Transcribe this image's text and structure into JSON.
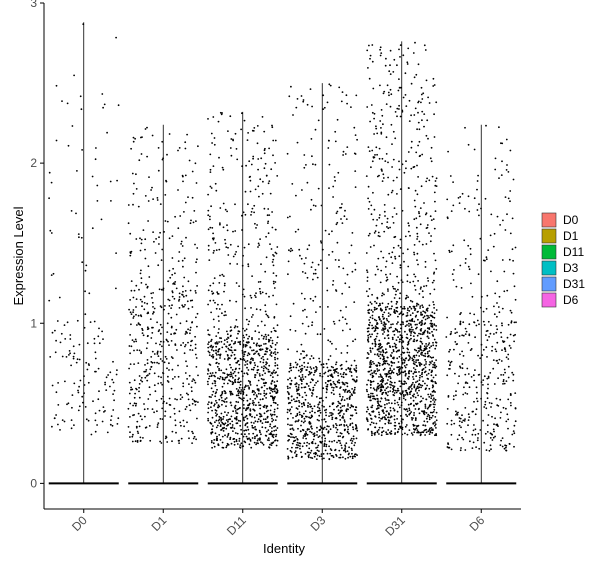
{
  "chart_data": {
    "type": "violin",
    "title": "",
    "xlabel": "Identity",
    "ylabel": "Expression Level",
    "categories": [
      "D0",
      "D1",
      "D11",
      "D3",
      "D31",
      "D6"
    ],
    "ylim": [
      -0.16,
      3.0
    ],
    "yticks": [
      0,
      1,
      2,
      3
    ],
    "ytick_labels": [
      "0",
      "1",
      "2",
      "3"
    ],
    "grid": false,
    "legend": {
      "position": "right",
      "entries": [
        {
          "label": "D0",
          "color": "#F8766D"
        },
        {
          "label": "D1",
          "color": "#B79F00"
        },
        {
          "label": "D11",
          "color": "#00BA38"
        },
        {
          "label": "D3",
          "color": "#00BFC4"
        },
        {
          "label": "D31",
          "color": "#619CFF"
        },
        {
          "label": "D6",
          "color": "#F564E3"
        }
      ]
    },
    "series": [
      {
        "category": "D0",
        "max": 2.88,
        "nonzero_min": 0.15,
        "nonzero_count": 170,
        "dense_low": 0.3,
        "dense_high": 1.0
      },
      {
        "category": "D1",
        "max": 2.24,
        "nonzero_min": 0.2,
        "nonzero_count": 520,
        "dense_low": 0.25,
        "dense_high": 1.2
      },
      {
        "category": "D11",
        "max": 2.32,
        "nonzero_min": 0.18,
        "nonzero_count": 1100,
        "dense_low": 0.22,
        "dense_high": 0.9
      },
      {
        "category": "D3",
        "max": 2.5,
        "nonzero_min": 0.12,
        "nonzero_count": 850,
        "dense_low": 0.15,
        "dense_high": 0.75
      },
      {
        "category": "D31",
        "max": 2.76,
        "nonzero_min": 0.25,
        "nonzero_count": 1500,
        "dense_low": 0.3,
        "dense_high": 1.1
      },
      {
        "category": "D6",
        "max": 2.24,
        "nonzero_min": 0.18,
        "nonzero_count": 420,
        "dense_low": 0.2,
        "dense_high": 1.0
      }
    ],
    "point_color": "#000000"
  }
}
